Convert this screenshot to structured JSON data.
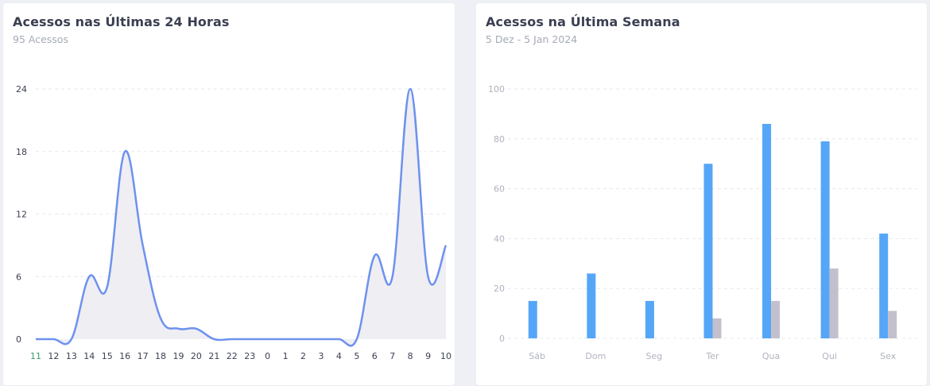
{
  "cards": [
    {
      "title": "Acessos nas Últimas 24 Horas",
      "subtitle": "95 Acessos"
    },
    {
      "title": "Acessos na Última Semana",
      "subtitle": "5 Dez - 5 Jan 2024"
    }
  ],
  "colors": {
    "line": "#6d92ee",
    "area": "#efeef3",
    "bar_primary": "#56a6f7",
    "bar_secondary": "#c2c0cc",
    "grid": "#e6e8ee",
    "axis_text": "#3a3f51",
    "x_tick_first": "#3d9a66",
    "bar_tick_text": "#b0b3bf"
  },
  "chart_data": [
    {
      "type": "area",
      "categories": [
        "11",
        "12",
        "13",
        "14",
        "15",
        "16",
        "17",
        "18",
        "19",
        "20",
        "21",
        "22",
        "23",
        "0",
        "1",
        "2",
        "3",
        "4",
        "5",
        "6",
        "7",
        "8",
        "9",
        "10"
      ],
      "series": [
        {
          "values": [
            0,
            0,
            0,
            6,
            5,
            18,
            9,
            2,
            1,
            1,
            0,
            0,
            0,
            0,
            0,
            0,
            0,
            0,
            0,
            8,
            6,
            24,
            6,
            9
          ]
        }
      ],
      "yticks": [
        0,
        6,
        12,
        18,
        24
      ],
      "ylim": [
        0,
        24
      ],
      "grid": true
    },
    {
      "type": "bar",
      "categories": [
        "Sáb",
        "Dom",
        "Seg",
        "Ter",
        "Qua",
        "Qui",
        "Sex"
      ],
      "series": [
        {
          "values": [
            15,
            26,
            15,
            70,
            86,
            79,
            42
          ]
        },
        {
          "values": [
            0,
            0,
            0,
            8,
            15,
            28,
            11
          ]
        }
      ],
      "yticks": [
        0,
        20,
        40,
        60,
        80,
        100
      ],
      "ylim": [
        0,
        100
      ],
      "grid": true
    }
  ]
}
